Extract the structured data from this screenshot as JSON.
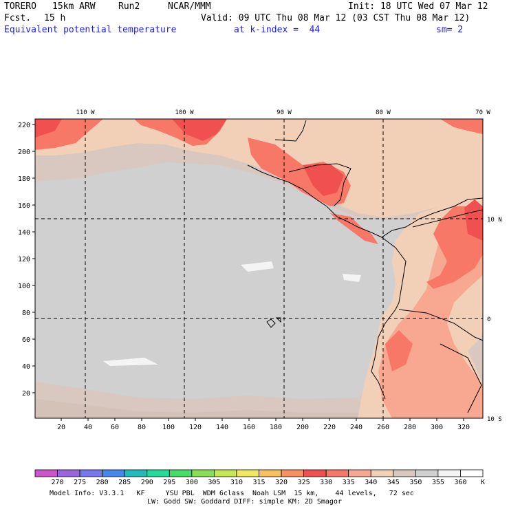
{
  "header": {
    "model": "TORERO",
    "resolution": "15km ARW",
    "run": "Run2",
    "org": "NCAR/MMM",
    "init": "Init: 18 UTC Wed 07 Mar 12",
    "fcst_label": "Fcst.",
    "fcst_value": "15 h",
    "valid": "Valid: 09 UTC Thu 08 Mar 12 (03 CST Thu 08 Mar 12)",
    "field": "Equivalent potential temperature",
    "level": "at k-index =  44",
    "smoothing": "sm= 2"
  },
  "map": {
    "lon_labels": [
      "110 W",
      "100 W",
      "90 W",
      "80 W",
      "70 W"
    ],
    "lat_labels": [
      "10 N",
      "0",
      "10 S"
    ],
    "y_ticks": [
      "220",
      "200",
      "180",
      "160",
      "140",
      "120",
      "100",
      "80",
      "60",
      "40",
      "20"
    ],
    "x_ticks": [
      "20",
      "40",
      "60",
      "80",
      "100",
      "120",
      "140",
      "160",
      "180",
      "200",
      "220",
      "240",
      "260",
      "280",
      "300",
      "320"
    ]
  },
  "legend": {
    "values": [
      "270",
      "275",
      "280",
      "285",
      "290",
      "295",
      "300",
      "305",
      "310",
      "315",
      "320",
      "325",
      "330",
      "335",
      "340",
      "345",
      "350",
      "355",
      "360"
    ],
    "unit": "K",
    "colors": [
      "#cc55cc",
      "#9966dd",
      "#7777ee",
      "#4488ee",
      "#22bbbb",
      "#22dd99",
      "#44dd66",
      "#88e055",
      "#c4e855",
      "#f0e860",
      "#f8c060",
      "#f89060",
      "#f05050",
      "#f87868",
      "#f8a890",
      "#f2d0b8",
      "#d8c8c0",
      "#d0d0d0",
      "#f4f4f4",
      "#ffffff"
    ]
  },
  "footer": {
    "line1": "Model Info: V3.3.1   KF     YSU PBL  WDM 6class  Noah LSM  15 km,    44 levels,   72 sec",
    "line2": "LW: Godd SW: Goddard DIFF: simple KM: 2D Smagor"
  }
}
